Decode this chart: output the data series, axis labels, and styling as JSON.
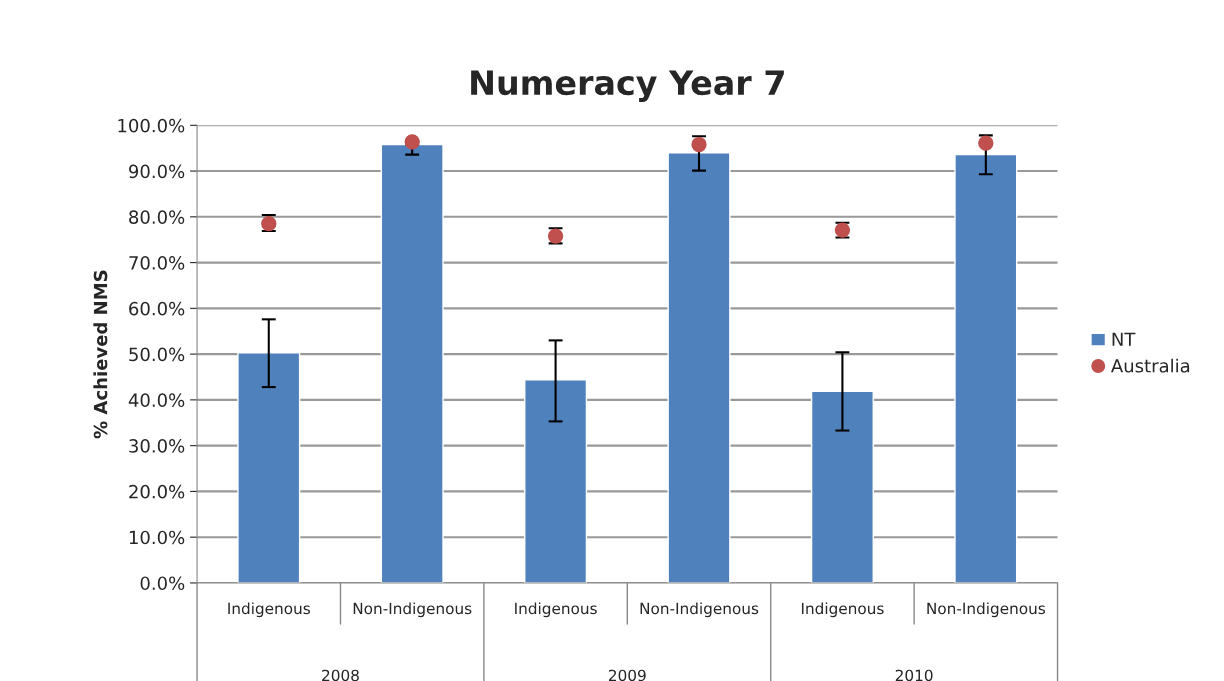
{
  "chart_data": {
    "type": "bar",
    "title": "Numeracy Year 7",
    "ylabel": "% Achieved NMS",
    "categories": [
      "Indigenous",
      "Non-Indigenous",
      "Indigenous",
      "Non-Indigenous",
      "Indigenous",
      "Non-Indigenous"
    ],
    "series": [
      {
        "name": "NT",
        "color": "#4f81bd",
        "values": [
          50.3,
          95.8,
          44.4,
          94.0,
          41.9,
          93.6
        ],
        "errors": [
          [
            42.8,
            57.6
          ],
          [
            93.6,
            95.8
          ],
          [
            35.3,
            53.0
          ],
          [
            90.1,
            97.6
          ],
          [
            33.3,
            50.4
          ],
          [
            89.3,
            97.8
          ]
        ]
      },
      {
        "name": "Australia",
        "type": "scatter",
        "color": "#c0504d",
        "marker": "circle",
        "values": [
          78.5,
          96.4,
          75.8,
          95.8,
          77.1,
          96.1
        ],
        "errors": [
          [
            76.9,
            80.4
          ],
          null,
          [
            74.2,
            77.5
          ],
          null,
          [
            75.5,
            78.7
          ],
          null
        ]
      }
    ],
    "ylim": [
      0,
      100
    ],
    "yticks": [
      {
        "value": 0,
        "label": "0.0%"
      },
      {
        "value": 10,
        "label": "10.0%"
      },
      {
        "value": 20,
        "label": "20.0%"
      },
      {
        "value": 30,
        "label": "30.0%"
      },
      {
        "value": 40,
        "label": "40.0%"
      },
      {
        "value": 50,
        "label": "50.0%"
      },
      {
        "value": 60,
        "label": "60.0%"
      },
      {
        "value": 70,
        "label": "70.0%"
      },
      {
        "value": 80,
        "label": "80.0%"
      },
      {
        "value": 90,
        "label": "90.0%"
      },
      {
        "value": 100,
        "label": "100.0%"
      }
    ],
    "annotations": [
      "2008",
      "2009",
      "2010"
    ],
    "grid": "y",
    "legend": "right"
  }
}
